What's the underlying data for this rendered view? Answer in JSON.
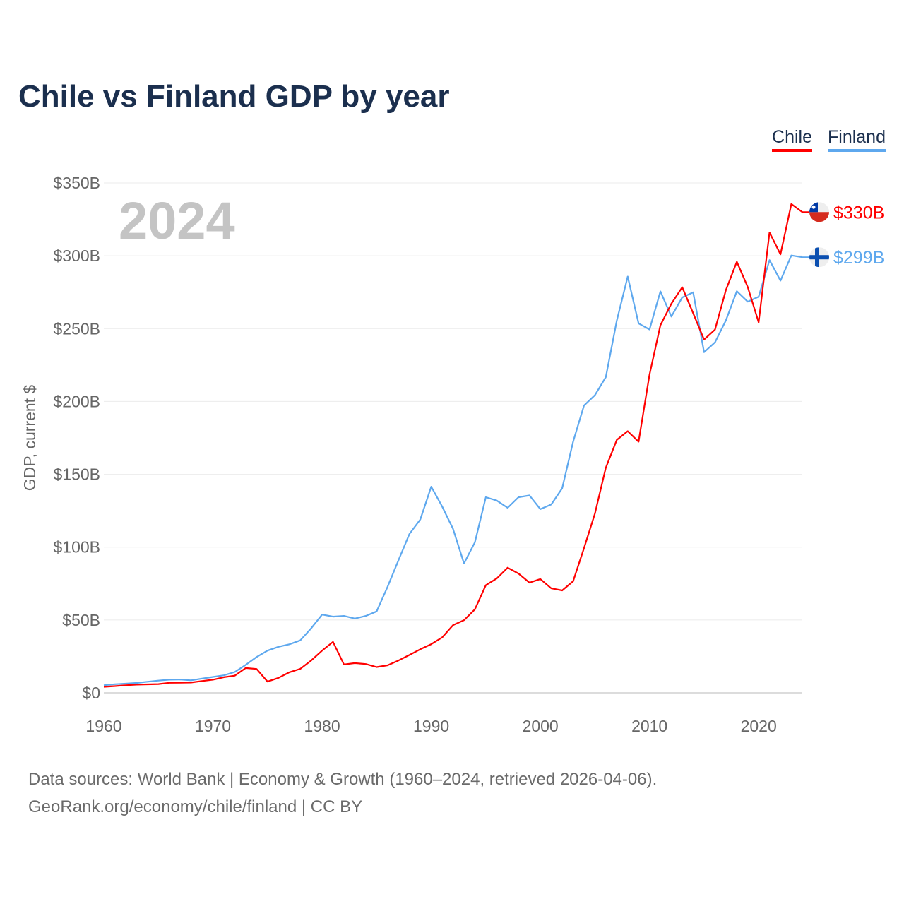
{
  "chart_data": {
    "type": "line",
    "title": "Chile vs Finland GDP by year",
    "xlabel": "",
    "ylabel": "GDP, current $",
    "xlim": [
      1960,
      2024
    ],
    "ylim": [
      0,
      350
    ],
    "y_unit": "billions USD",
    "y_ticks": [
      0,
      50,
      100,
      150,
      200,
      250,
      300,
      350
    ],
    "y_tick_labels": [
      "$0",
      "$50B",
      "$100B",
      "$150B",
      "$200B",
      "$250B",
      "$300B",
      "$350B"
    ],
    "x_ticks": [
      1960,
      1970,
      1980,
      1990,
      2000,
      2010,
      2020
    ],
    "x_tick_labels": [
      "1960",
      "1970",
      "1980",
      "1990",
      "2000",
      "2010",
      "2020"
    ],
    "grid": true,
    "legend_position": "top-right",
    "year_watermark": "2024",
    "x_start": 1960,
    "series": [
      {
        "name": "Chile",
        "color": "#ff0000",
        "end_label": "$330B",
        "values": [
          4.1,
          4.6,
          5.2,
          5.6,
          5.8,
          6.0,
          6.9,
          7.0,
          7.1,
          8.1,
          9.0,
          10.7,
          11.8,
          17.0,
          16.4,
          7.7,
          10.3,
          14.1,
          16.5,
          22.2,
          29.0,
          35.0,
          19.5,
          20.4,
          19.8,
          17.7,
          18.9,
          22.2,
          26.0,
          29.9,
          33.4,
          38.0,
          46.5,
          49.9,
          57.3,
          73.9,
          78.5,
          85.9,
          81.9,
          75.6,
          78.1,
          71.7,
          70.3,
          76.6,
          99.3,
          123.1,
          154.5,
          173.6,
          179.6,
          172.4,
          218.5,
          252.3,
          267.1,
          278.4,
          260.5,
          242.5,
          249.3,
          276.4,
          295.9,
          278.6,
          254.3,
          316.0,
          301.0,
          335.5,
          330.0
        ]
      },
      {
        "name": "Finland",
        "color": "#5ea8ee",
        "end_label": "$299B",
        "values": [
          5.2,
          5.9,
          6.3,
          6.8,
          7.6,
          8.4,
          9.0,
          9.1,
          8.6,
          9.8,
          10.9,
          12.0,
          14.3,
          19.2,
          24.6,
          29.0,
          31.6,
          33.3,
          36.0,
          44.3,
          53.7,
          52.3,
          52.8,
          51.0,
          52.8,
          55.9,
          72.8,
          91.0,
          109.0,
          119.0,
          141.5,
          128.0,
          112.5,
          88.8,
          103.3,
          134.3,
          132.0,
          127.0,
          134.3,
          135.5,
          126.1,
          129.3,
          140.4,
          172.4,
          197.2,
          204.4,
          216.7,
          255.4,
          285.7,
          253.6,
          249.4,
          275.6,
          258.3,
          271.4,
          274.9,
          233.8,
          240.6,
          255.6,
          275.7,
          268.5,
          271.9,
          297.0,
          282.9,
          300.2,
          299.0
        ]
      }
    ]
  },
  "footer": {
    "line1": "Data sources: World Bank | Economy & Growth (1960–2024, retrieved 2026-04-06).",
    "line2": "GeoRank.org/economy/chile/finland | CC BY"
  }
}
